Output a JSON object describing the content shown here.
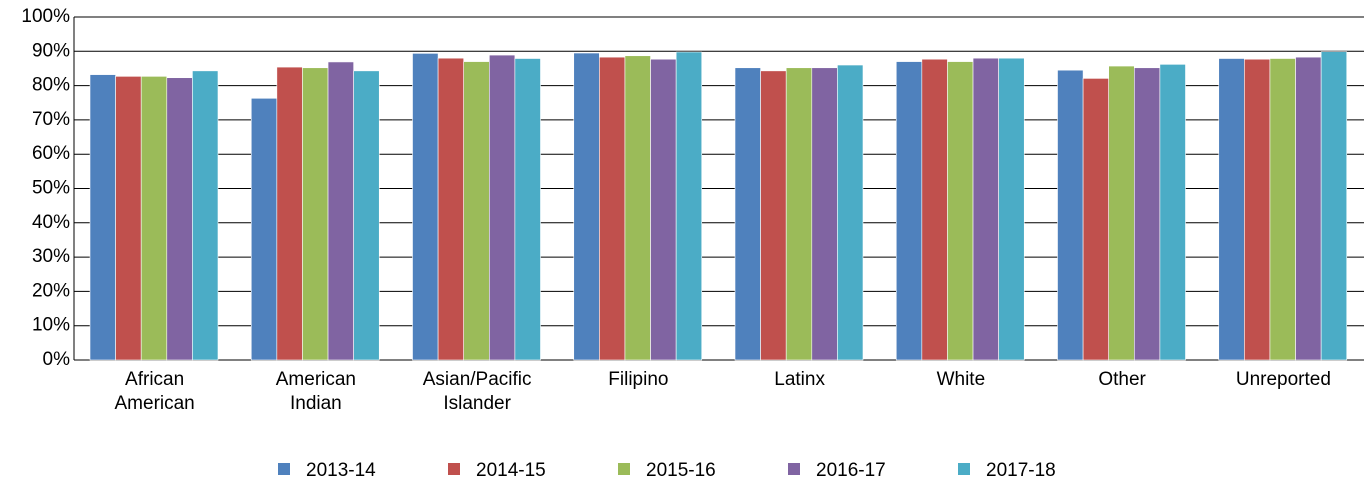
{
  "chart_data": {
    "type": "bar",
    "categories": [
      "African American",
      "American Indian",
      "Asian/Pacific Islander",
      "Filipino",
      "Latinx",
      "White",
      "Other",
      "Unreported"
    ],
    "series": [
      {
        "name": "2013-14",
        "color": "#4f81bd",
        "values": [
          83.2,
          76.3,
          89.4,
          89.5,
          85.2,
          87.0,
          84.5,
          87.9
        ]
      },
      {
        "name": "2014-15",
        "color": "#c0504d",
        "values": [
          82.7,
          85.4,
          88.0,
          88.3,
          84.3,
          87.7,
          82.1,
          87.7
        ]
      },
      {
        "name": "2015-16",
        "color": "#9bbb59",
        "values": [
          82.7,
          85.2,
          87.0,
          88.7,
          85.2,
          87.0,
          85.7,
          87.9
        ]
      },
      {
        "name": "2016-17",
        "color": "#8064a2",
        "values": [
          82.3,
          86.9,
          88.9,
          87.7,
          85.2,
          88.0,
          85.2,
          88.3
        ]
      },
      {
        "name": "2017-18",
        "color": "#4bacc6",
        "values": [
          84.3,
          84.3,
          87.9,
          89.8,
          86.0,
          88.0,
          86.2,
          89.9
        ]
      }
    ],
    "ylim": [
      0,
      100
    ],
    "yticks": [
      {
        "value": 0,
        "label": "0%"
      },
      {
        "value": 10,
        "label": "10%"
      },
      {
        "value": 20,
        "label": "20%"
      },
      {
        "value": 30,
        "label": "30%"
      },
      {
        "value": 40,
        "label": "40%"
      },
      {
        "value": 50,
        "label": "50%"
      },
      {
        "value": 60,
        "label": "60%"
      },
      {
        "value": 70,
        "label": "70%"
      },
      {
        "value": 80,
        "label": "80%"
      },
      {
        "value": 90,
        "label": "90%"
      },
      {
        "value": 100,
        "label": "100%"
      }
    ],
    "grid": true,
    "legend": "bottom"
  }
}
